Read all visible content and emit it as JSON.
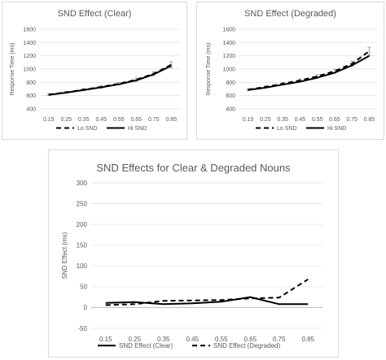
{
  "chart_data": [
    {
      "type": "line",
      "title": "SND Effect (Clear)",
      "xlabel": "",
      "ylabel": "Response Time (ms)",
      "x": [
        "0.15",
        "0.25",
        "0.35",
        "0.45",
        "0.55",
        "0.65",
        "0.75",
        "0.85"
      ],
      "ylim": [
        400,
        1600
      ],
      "yticks": [
        "400",
        "600",
        "800",
        "1000",
        "1200",
        "1400",
        "1600"
      ],
      "grid": true,
      "legend_position": "bottom",
      "series": [
        {
          "name": "Lo SND",
          "style": "dashed",
          "values": [
            615,
            650,
            690,
            730,
            780,
            840,
            930,
            1065
          ]
        },
        {
          "name": "Hi SND",
          "style": "solid",
          "values": [
            610,
            645,
            685,
            725,
            770,
            830,
            920,
            1050
          ]
        }
      ],
      "error": [
        15,
        15,
        15,
        18,
        20,
        25,
        30,
        45
      ]
    },
    {
      "type": "line",
      "title": "SND Effect (Degraded)",
      "xlabel": "",
      "ylabel": "Response Time (ms)",
      "x": [
        "0.15",
        "0.25",
        "0.35",
        "0.45",
        "0.55",
        "0.65",
        "0.75",
        "0.85"
      ],
      "ylim": [
        400,
        1600
      ],
      "yticks": [
        "400",
        "600",
        "800",
        "1000",
        "1200",
        "1400",
        "1600"
      ],
      "grid": true,
      "legend_position": "bottom",
      "series": [
        {
          "name": "Lo SND",
          "style": "dashed",
          "values": [
            690,
            730,
            780,
            830,
            890,
            970,
            1080,
            1270
          ]
        },
        {
          "name": "Hi SND",
          "style": "solid",
          "values": [
            685,
            720,
            765,
            810,
            870,
            945,
            1055,
            1200
          ]
        }
      ],
      "error": [
        15,
        18,
        20,
        22,
        25,
        30,
        40,
        60
      ]
    },
    {
      "type": "line",
      "title": "SND Effects for Clear & Degraded Nouns",
      "xlabel": "",
      "ylabel": "SND Effect (ms)",
      "x": [
        "0.15",
        "0.25",
        "0.35",
        "0.45",
        "0.55",
        "0.65",
        "0.75",
        "0.85"
      ],
      "ylim": [
        -50,
        300
      ],
      "yticks": [
        "-50",
        "0",
        "50",
        "100",
        "150",
        "200",
        "250",
        "300"
      ],
      "grid": true,
      "legend_position": "bottom",
      "series": [
        {
          "name": "SND Effect (Clear)",
          "style": "solid",
          "values": [
            11,
            13,
            8,
            10,
            14,
            25,
            8,
            8
          ]
        },
        {
          "name": "SND Effect (Degraded)",
          "style": "dashed",
          "values": [
            6,
            8,
            16,
            17,
            18,
            22,
            24,
            68
          ]
        }
      ]
    }
  ]
}
